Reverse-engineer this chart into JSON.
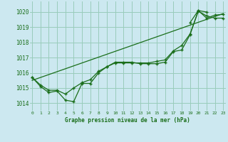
{
  "title": "Graphe pression niveau de la mer (hPa)",
  "background_color": "#cce8f0",
  "grid_color": "#99ccbb",
  "line_color": "#1a6e1a",
  "ylim": [
    1013.5,
    1020.7
  ],
  "yticks": [
    1014,
    1015,
    1016,
    1017,
    1018,
    1019,
    1020
  ],
  "xlim": [
    -0.3,
    23.3
  ],
  "xticks": [
    0,
    1,
    2,
    3,
    4,
    5,
    6,
    7,
    8,
    9,
    10,
    11,
    12,
    13,
    14,
    15,
    16,
    17,
    18,
    19,
    20,
    21,
    22,
    23
  ],
  "x_labels": [
    "0",
    "1",
    "2",
    "3",
    "4",
    "5",
    "6",
    "7",
    "8",
    "9",
    "10",
    "11",
    "12",
    "13",
    "14",
    "15",
    "16",
    "17",
    "18",
    "19",
    "20",
    "21",
    "22",
    "23"
  ],
  "series1_x": [
    0,
    1,
    2,
    3,
    4,
    5,
    6,
    7,
    8,
    9,
    10,
    11,
    12,
    13,
    14,
    15,
    16,
    17,
    18,
    19,
    20,
    21
  ],
  "series1_y": [
    1015.7,
    1015.1,
    1014.7,
    1014.8,
    1014.2,
    1014.1,
    1015.3,
    1015.3,
    1016.0,
    1016.4,
    1016.7,
    1016.7,
    1016.7,
    1016.6,
    1016.6,
    1016.6,
    1016.7,
    1017.4,
    1017.5,
    1018.5,
    1020.1,
    1020.0
  ],
  "series2_x": [
    0,
    1,
    2,
    3,
    4,
    5,
    6,
    7,
    8,
    9,
    10,
    11,
    12,
    13,
    14,
    15,
    16,
    17,
    18,
    19,
    20,
    21,
    22,
    23
  ],
  "series2_y": [
    1015.7,
    1015.2,
    1014.85,
    1014.85,
    1014.6,
    1015.0,
    1015.35,
    1015.55,
    1016.1,
    1016.4,
    1016.65,
    1016.65,
    1016.65,
    1016.65,
    1016.65,
    1016.75,
    1016.85,
    1017.45,
    1017.8,
    1018.55,
    1020.05,
    1019.75,
    1019.6,
    1019.6
  ],
  "series3_x": [
    0,
    23
  ],
  "series3_y": [
    1015.5,
    1019.9
  ],
  "series4_x": [
    19,
    20,
    21,
    22,
    23
  ],
  "series4_y": [
    1019.3,
    1020.1,
    1019.6,
    1019.8,
    1019.85
  ]
}
